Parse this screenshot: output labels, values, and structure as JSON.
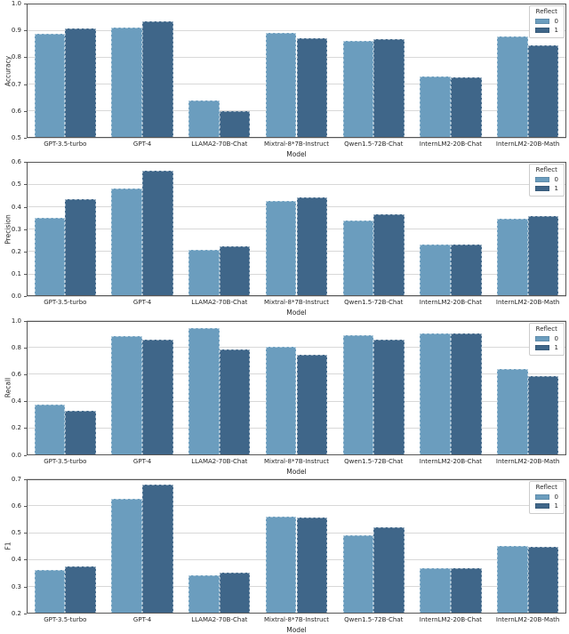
{
  "figure": {
    "xlabel": "Model",
    "legend": {
      "title": "Reflect",
      "entries": [
        "0",
        "1"
      ]
    },
    "colors": {
      "series0": "#6B9DBE",
      "series1": "#3F6689",
      "grid": "#d8d8d8",
      "spine": "#565656",
      "text": "#262626",
      "legend_border": "#cccccc",
      "background": "#ffffff"
    }
  },
  "chart_data": [
    {
      "type": "bar",
      "title": "",
      "ylabel": "Accuracy",
      "xlabel": "Model",
      "ylim": [
        0.5,
        1.0
      ],
      "yticks": [
        0.5,
        0.6,
        0.7,
        0.8,
        0.9,
        1.0
      ],
      "ytick_labels": [
        "0.5",
        "0.6",
        "0.7",
        "0.8",
        "0.9",
        "1.0"
      ],
      "grid": true,
      "legend_title": "Reflect",
      "legend_position": "upper right",
      "categories": [
        "GPT-3.5-turbo",
        "GPT-4",
        "LLAMA2-70B-Chat",
        "Mixtral-8*7B-Instruct",
        "Qwen1.5-72B-Chat",
        "InternLM2-20B-Chat",
        "InternLM2-20B-Math"
      ],
      "series": [
        {
          "name": "0",
          "color": "#6B9DBE",
          "values": [
            0.888,
            0.912,
            0.638,
            0.892,
            0.86,
            0.727,
            0.878
          ]
        },
        {
          "name": "1",
          "color": "#3F6689",
          "values": [
            0.907,
            0.933,
            0.6,
            0.872,
            0.866,
            0.726,
            0.843
          ]
        }
      ]
    },
    {
      "type": "bar",
      "title": "",
      "ylabel": "Precision",
      "xlabel": "Model",
      "ylim": [
        0.0,
        0.6
      ],
      "yticks": [
        0.0,
        0.1,
        0.2,
        0.3,
        0.4,
        0.5,
        0.6
      ],
      "ytick_labels": [
        "0.0",
        "0.1",
        "0.2",
        "0.3",
        "0.4",
        "0.5",
        "0.6"
      ],
      "grid": true,
      "legend_title": "Reflect",
      "legend_position": "upper right",
      "categories": [
        "GPT-3.5-turbo",
        "GPT-4",
        "LLAMA2-70B-Chat",
        "Mixtral-8*7B-Instruct",
        "Qwen1.5-72B-Chat",
        "InternLM2-20B-Chat",
        "InternLM2-20B-Math"
      ],
      "series": [
        {
          "name": "0",
          "color": "#6B9DBE",
          "values": [
            0.352,
            0.483,
            0.207,
            0.425,
            0.34,
            0.23,
            0.347
          ]
        },
        {
          "name": "1",
          "color": "#3F6689",
          "values": [
            0.435,
            0.56,
            0.223,
            0.443,
            0.368,
            0.23,
            0.36
          ]
        }
      ]
    },
    {
      "type": "bar",
      "title": "",
      "ylabel": "Recall",
      "xlabel": "Model",
      "ylim": [
        0.0,
        1.0
      ],
      "yticks": [
        0.0,
        0.2,
        0.4,
        0.6,
        0.8,
        1.0
      ],
      "ytick_labels": [
        "0.0",
        "0.2",
        "0.4",
        "0.6",
        "0.8",
        "1.0"
      ],
      "grid": true,
      "legend_title": "Reflect",
      "legend_position": "upper right",
      "categories": [
        "GPT-3.5-turbo",
        "GPT-4",
        "LLAMA2-70B-Chat",
        "Mixtral-8*7B-Instruct",
        "Qwen1.5-72B-Chat",
        "InternLM2-20B-Chat",
        "InternLM2-20B-Math"
      ],
      "series": [
        {
          "name": "0",
          "color": "#6B9DBE",
          "values": [
            0.373,
            0.885,
            0.943,
            0.805,
            0.888,
            0.905,
            0.64
          ]
        },
        {
          "name": "1",
          "color": "#3F6689",
          "values": [
            0.33,
            0.857,
            0.785,
            0.743,
            0.855,
            0.907,
            0.585
          ]
        }
      ]
    },
    {
      "type": "bar",
      "title": "",
      "ylabel": "F1",
      "xlabel": "Model",
      "ylim": [
        0.2,
        0.7
      ],
      "yticks": [
        0.2,
        0.3,
        0.4,
        0.5,
        0.6,
        0.7
      ],
      "ytick_labels": [
        "0.2",
        "0.3",
        "0.4",
        "0.5",
        "0.6",
        "0.7"
      ],
      "grid": true,
      "legend_title": "Reflect",
      "legend_position": "upper right",
      "categories": [
        "GPT-3.5-turbo",
        "GPT-4",
        "LLAMA2-70B-Chat",
        "Mixtral-8*7B-Instruct",
        "Qwen1.5-72B-Chat",
        "InternLM2-20B-Chat",
        "InternLM2-20B-Math"
      ],
      "series": [
        {
          "name": "0",
          "color": "#6B9DBE",
          "values": [
            0.362,
            0.625,
            0.34,
            0.56,
            0.49,
            0.368,
            0.45
          ]
        },
        {
          "name": "1",
          "color": "#3F6689",
          "values": [
            0.376,
            0.68,
            0.35,
            0.558,
            0.522,
            0.367,
            0.448
          ]
        }
      ]
    }
  ]
}
